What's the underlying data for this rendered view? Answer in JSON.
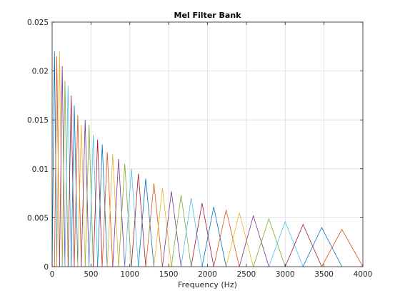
{
  "chart_data": {
    "type": "line",
    "title": "Mel Filter Bank",
    "xlabel": "Frequency (Hz)",
    "ylabel": "",
    "xlim": [
      0,
      4000
    ],
    "ylim": [
      0,
      0.025
    ],
    "x_ticks": [
      0,
      500,
      1000,
      1500,
      2000,
      2500,
      3000,
      3500,
      4000
    ],
    "x_tick_labels": [
      "0",
      "500",
      "1000",
      "1500",
      "2000",
      "2500",
      "3000",
      "3500",
      "4000"
    ],
    "y_ticks": [
      0,
      0.005,
      0.01,
      0.015,
      0.02,
      0.025
    ],
    "y_tick_labels": [
      "0",
      "0.005",
      "0.01",
      "0.015",
      "0.02",
      "0.025"
    ],
    "grid": true,
    "legend": "none",
    "colors": [
      "#0072bd",
      "#d95319",
      "#edb120",
      "#7e2f8e",
      "#77ac30",
      "#4dbeee",
      "#a2142f"
    ],
    "series_shape": "triangular",
    "series": [
      {
        "start": 0,
        "peak": 30,
        "end": 60,
        "height": 0.022
      },
      {
        "start": 30,
        "peak": 60,
        "end": 95,
        "height": 0.0215
      },
      {
        "start": 60,
        "peak": 95,
        "end": 130,
        "height": 0.022
      },
      {
        "start": 95,
        "peak": 130,
        "end": 165,
        "height": 0.0205
      },
      {
        "start": 130,
        "peak": 165,
        "end": 205,
        "height": 0.019
      },
      {
        "start": 165,
        "peak": 205,
        "end": 245,
        "height": 0.0185
      },
      {
        "start": 205,
        "peak": 245,
        "end": 285,
        "height": 0.0175
      },
      {
        "start": 245,
        "peak": 285,
        "end": 330,
        "height": 0.0165
      },
      {
        "start": 285,
        "peak": 330,
        "end": 375,
        "height": 0.0155
      },
      {
        "start": 330,
        "peak": 375,
        "end": 425,
        "height": 0.0145
      },
      {
        "start": 375,
        "peak": 425,
        "end": 475,
        "height": 0.015
      },
      {
        "start": 425,
        "peak": 475,
        "end": 530,
        "height": 0.0145
      },
      {
        "start": 475,
        "peak": 530,
        "end": 585,
        "height": 0.0135
      },
      {
        "start": 530,
        "peak": 585,
        "end": 645,
        "height": 0.013
      },
      {
        "start": 585,
        "peak": 645,
        "end": 710,
        "height": 0.0125
      },
      {
        "start": 645,
        "peak": 710,
        "end": 780,
        "height": 0.0117
      },
      {
        "start": 710,
        "peak": 780,
        "end": 855,
        "height": 0.0115
      },
      {
        "start": 780,
        "peak": 855,
        "end": 935,
        "height": 0.011
      },
      {
        "start": 855,
        "peak": 935,
        "end": 1020,
        "height": 0.0105
      },
      {
        "start": 935,
        "peak": 1020,
        "end": 1110,
        "height": 0.01
      },
      {
        "start": 1020,
        "peak": 1110,
        "end": 1205,
        "height": 0.0095
      },
      {
        "start": 1110,
        "peak": 1205,
        "end": 1310,
        "height": 0.009
      },
      {
        "start": 1205,
        "peak": 1310,
        "end": 1420,
        "height": 0.0085
      },
      {
        "start": 1310,
        "peak": 1420,
        "end": 1535,
        "height": 0.008
      },
      {
        "start": 1420,
        "peak": 1535,
        "end": 1660,
        "height": 0.0077
      },
      {
        "start": 1535,
        "peak": 1660,
        "end": 1790,
        "height": 0.0073
      },
      {
        "start": 1660,
        "peak": 1790,
        "end": 1930,
        "height": 0.007
      },
      {
        "start": 1790,
        "peak": 1930,
        "end": 2080,
        "height": 0.0065
      },
      {
        "start": 1930,
        "peak": 2080,
        "end": 2240,
        "height": 0.0061
      },
      {
        "start": 2080,
        "peak": 2240,
        "end": 2410,
        "height": 0.0058
      },
      {
        "start": 2240,
        "peak": 2410,
        "end": 2590,
        "height": 0.0055
      },
      {
        "start": 2410,
        "peak": 2590,
        "end": 2790,
        "height": 0.0052
      },
      {
        "start": 2590,
        "peak": 2790,
        "end": 3000,
        "height": 0.0049
      },
      {
        "start": 2790,
        "peak": 3000,
        "end": 3230,
        "height": 0.0046
      },
      {
        "start": 3000,
        "peak": 3230,
        "end": 3470,
        "height": 0.0043
      },
      {
        "start": 3230,
        "peak": 3470,
        "end": 3730,
        "height": 0.004
      },
      {
        "start": 3470,
        "peak": 3730,
        "end": 4000,
        "height": 0.0038
      }
    ]
  }
}
